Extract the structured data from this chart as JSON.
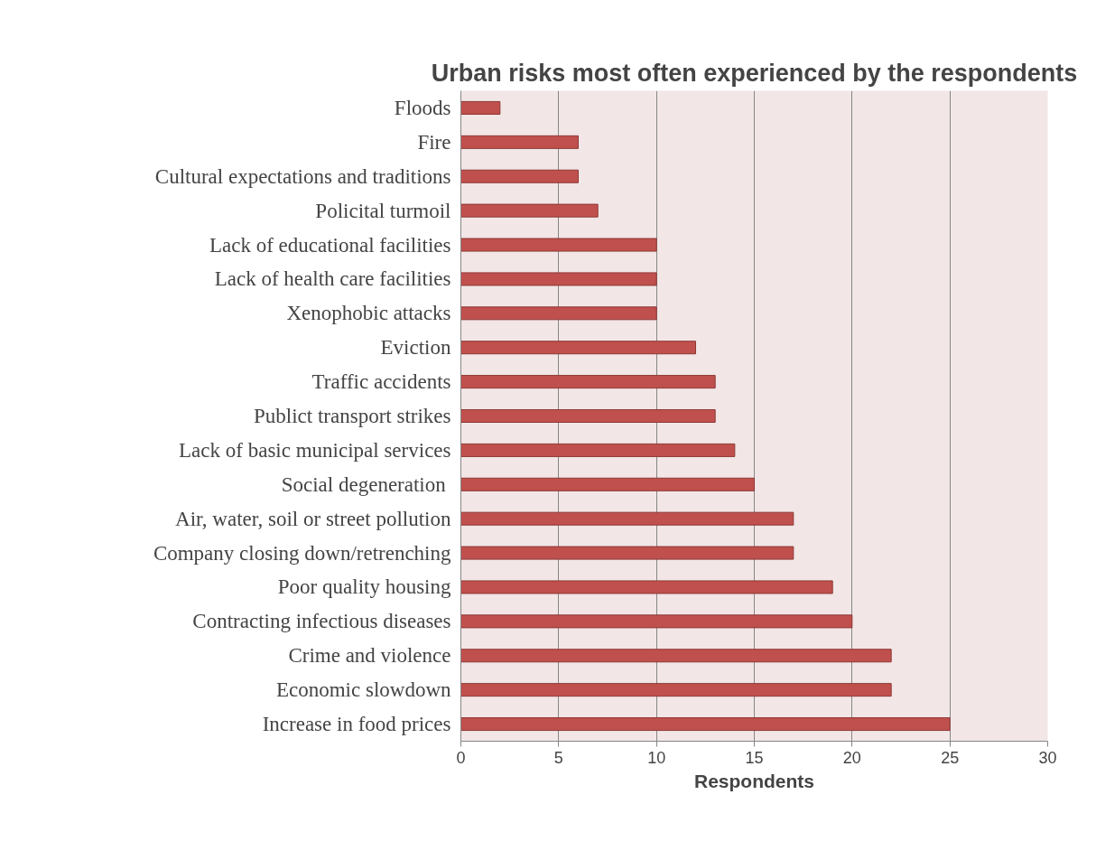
{
  "chart_data": {
    "type": "bar",
    "orientation": "horizontal",
    "title": "Urban risks most often experienced by the respondents",
    "xlabel": "Respondents",
    "categories": [
      "Floods",
      "Fire",
      "Cultural expectations and traditions",
      "Policital turmoil",
      "Lack of educational facilities",
      "Lack of health care facilities",
      "Xenophobic attacks",
      "Eviction",
      "Traffic accidents",
      "Publict transport strikes",
      "Lack of basic municipal services",
      "Social degeneration ",
      "Air, water, soil or street pollution",
      "Company closing down/retrenching",
      "Poor quality housing",
      "Contracting infectious diseases",
      "Crime and violence",
      "Economic slowdown",
      "Increase in food prices"
    ],
    "values": [
      2,
      6,
      6,
      7,
      10,
      10,
      10,
      12,
      13,
      13,
      14,
      15,
      17,
      17,
      19,
      20,
      22,
      22,
      25
    ],
    "color": "#c0504d",
    "xlim": [
      0,
      30
    ],
    "xticks": [
      0,
      5,
      10,
      15,
      20,
      25,
      30
    ],
    "grid": "x"
  }
}
